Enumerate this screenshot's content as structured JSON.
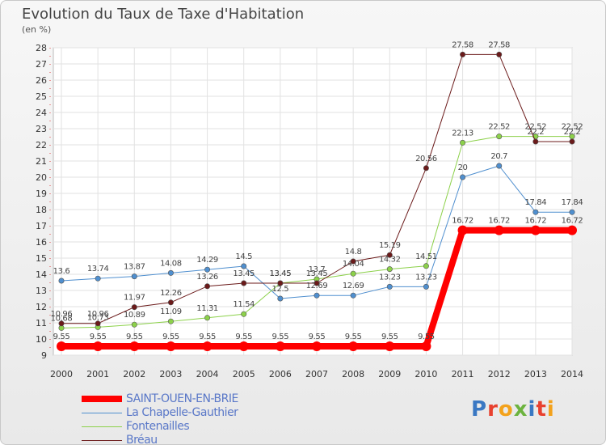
{
  "title": "Evolution du Taux de Taxe d'Habitation",
  "subtitle": "(en %)",
  "logo": {
    "text": "Proxiti",
    "colors": [
      "#3a78c3",
      "#e8412f",
      "#f3a21c",
      "#6cb33f",
      "#3a78c3",
      "#e8412f",
      "#f3a21c"
    ]
  },
  "chart_data": {
    "type": "line",
    "x": [
      "2000",
      "2001",
      "2002",
      "2003",
      "2004",
      "2005",
      "2006",
      "2007",
      "2008",
      "2009",
      "2010",
      "2011",
      "2012",
      "2013",
      "2014"
    ],
    "ylim": [
      9,
      28
    ],
    "yticks": [
      9,
      10,
      11,
      12,
      13,
      14,
      15,
      16,
      17,
      18,
      19,
      20,
      21,
      22,
      23,
      24,
      25,
      26,
      27,
      28
    ],
    "grid": true,
    "legend": "bottom-left",
    "series": [
      {
        "name": "SAINT-OUEN-EN-BRIE",
        "color": "#ff0000",
        "width": 8,
        "values": [
          9.55,
          9.55,
          9.55,
          9.55,
          9.55,
          9.55,
          9.55,
          9.55,
          9.55,
          9.55,
          9.55,
          16.72,
          16.72,
          16.72,
          16.72
        ],
        "labels": [
          "9.55",
          "9.55",
          "9.55",
          "9.55",
          "9.55",
          "9.55",
          "9.55",
          "9.55",
          "9.55",
          "9.55",
          "9.55",
          "16.72",
          "16.72",
          "16.72",
          "16.72"
        ]
      },
      {
        "name": "La Chapelle-Gauthier",
        "color": "#4f8fcf",
        "width": 1,
        "values": [
          13.6,
          13.74,
          13.87,
          14.08,
          14.29,
          14.5,
          12.5,
          12.69,
          12.69,
          13.23,
          13.23,
          20,
          20.7,
          17.84,
          17.84
        ],
        "labels": [
          "13.6",
          "13.74",
          "13.87",
          "14.08",
          "14.29",
          "14.5",
          "12.5",
          "12.69",
          "12.69",
          "13.23",
          "13.23",
          "20",
          "20.7",
          "17.84",
          "17.84"
        ]
      },
      {
        "name": "Fontenailles",
        "color": "#8cd14a",
        "width": 1,
        "values": [
          10.68,
          10.73,
          10.89,
          11.09,
          11.31,
          11.54,
          13.45,
          13.7,
          14.04,
          14.32,
          14.51,
          22.13,
          22.52,
          22.52,
          22.52
        ],
        "labels": [
          "10.68",
          "10.73",
          "10.89",
          "11.09",
          "11.31",
          "11.54",
          "13.45",
          "13.7",
          "14.04",
          "14.32",
          "14.51",
          "22.13",
          "22.52",
          "22.52",
          "22.52"
        ]
      },
      {
        "name": "Bréau",
        "color": "#6b1a1a",
        "width": 1,
        "values": [
          10.96,
          10.96,
          11.97,
          12.26,
          13.26,
          13.45,
          13.45,
          13.45,
          14.8,
          15.19,
          20.56,
          27.58,
          27.58,
          22.2,
          22.2
        ],
        "labels": [
          "10.96",
          "10.96",
          "11.97",
          "12.26",
          "13.26",
          "13.45",
          "13.45",
          "13.45",
          "14.8",
          "15.19",
          "20.56",
          "27.58",
          "27.58",
          "22.2",
          "22.2"
        ]
      }
    ]
  }
}
